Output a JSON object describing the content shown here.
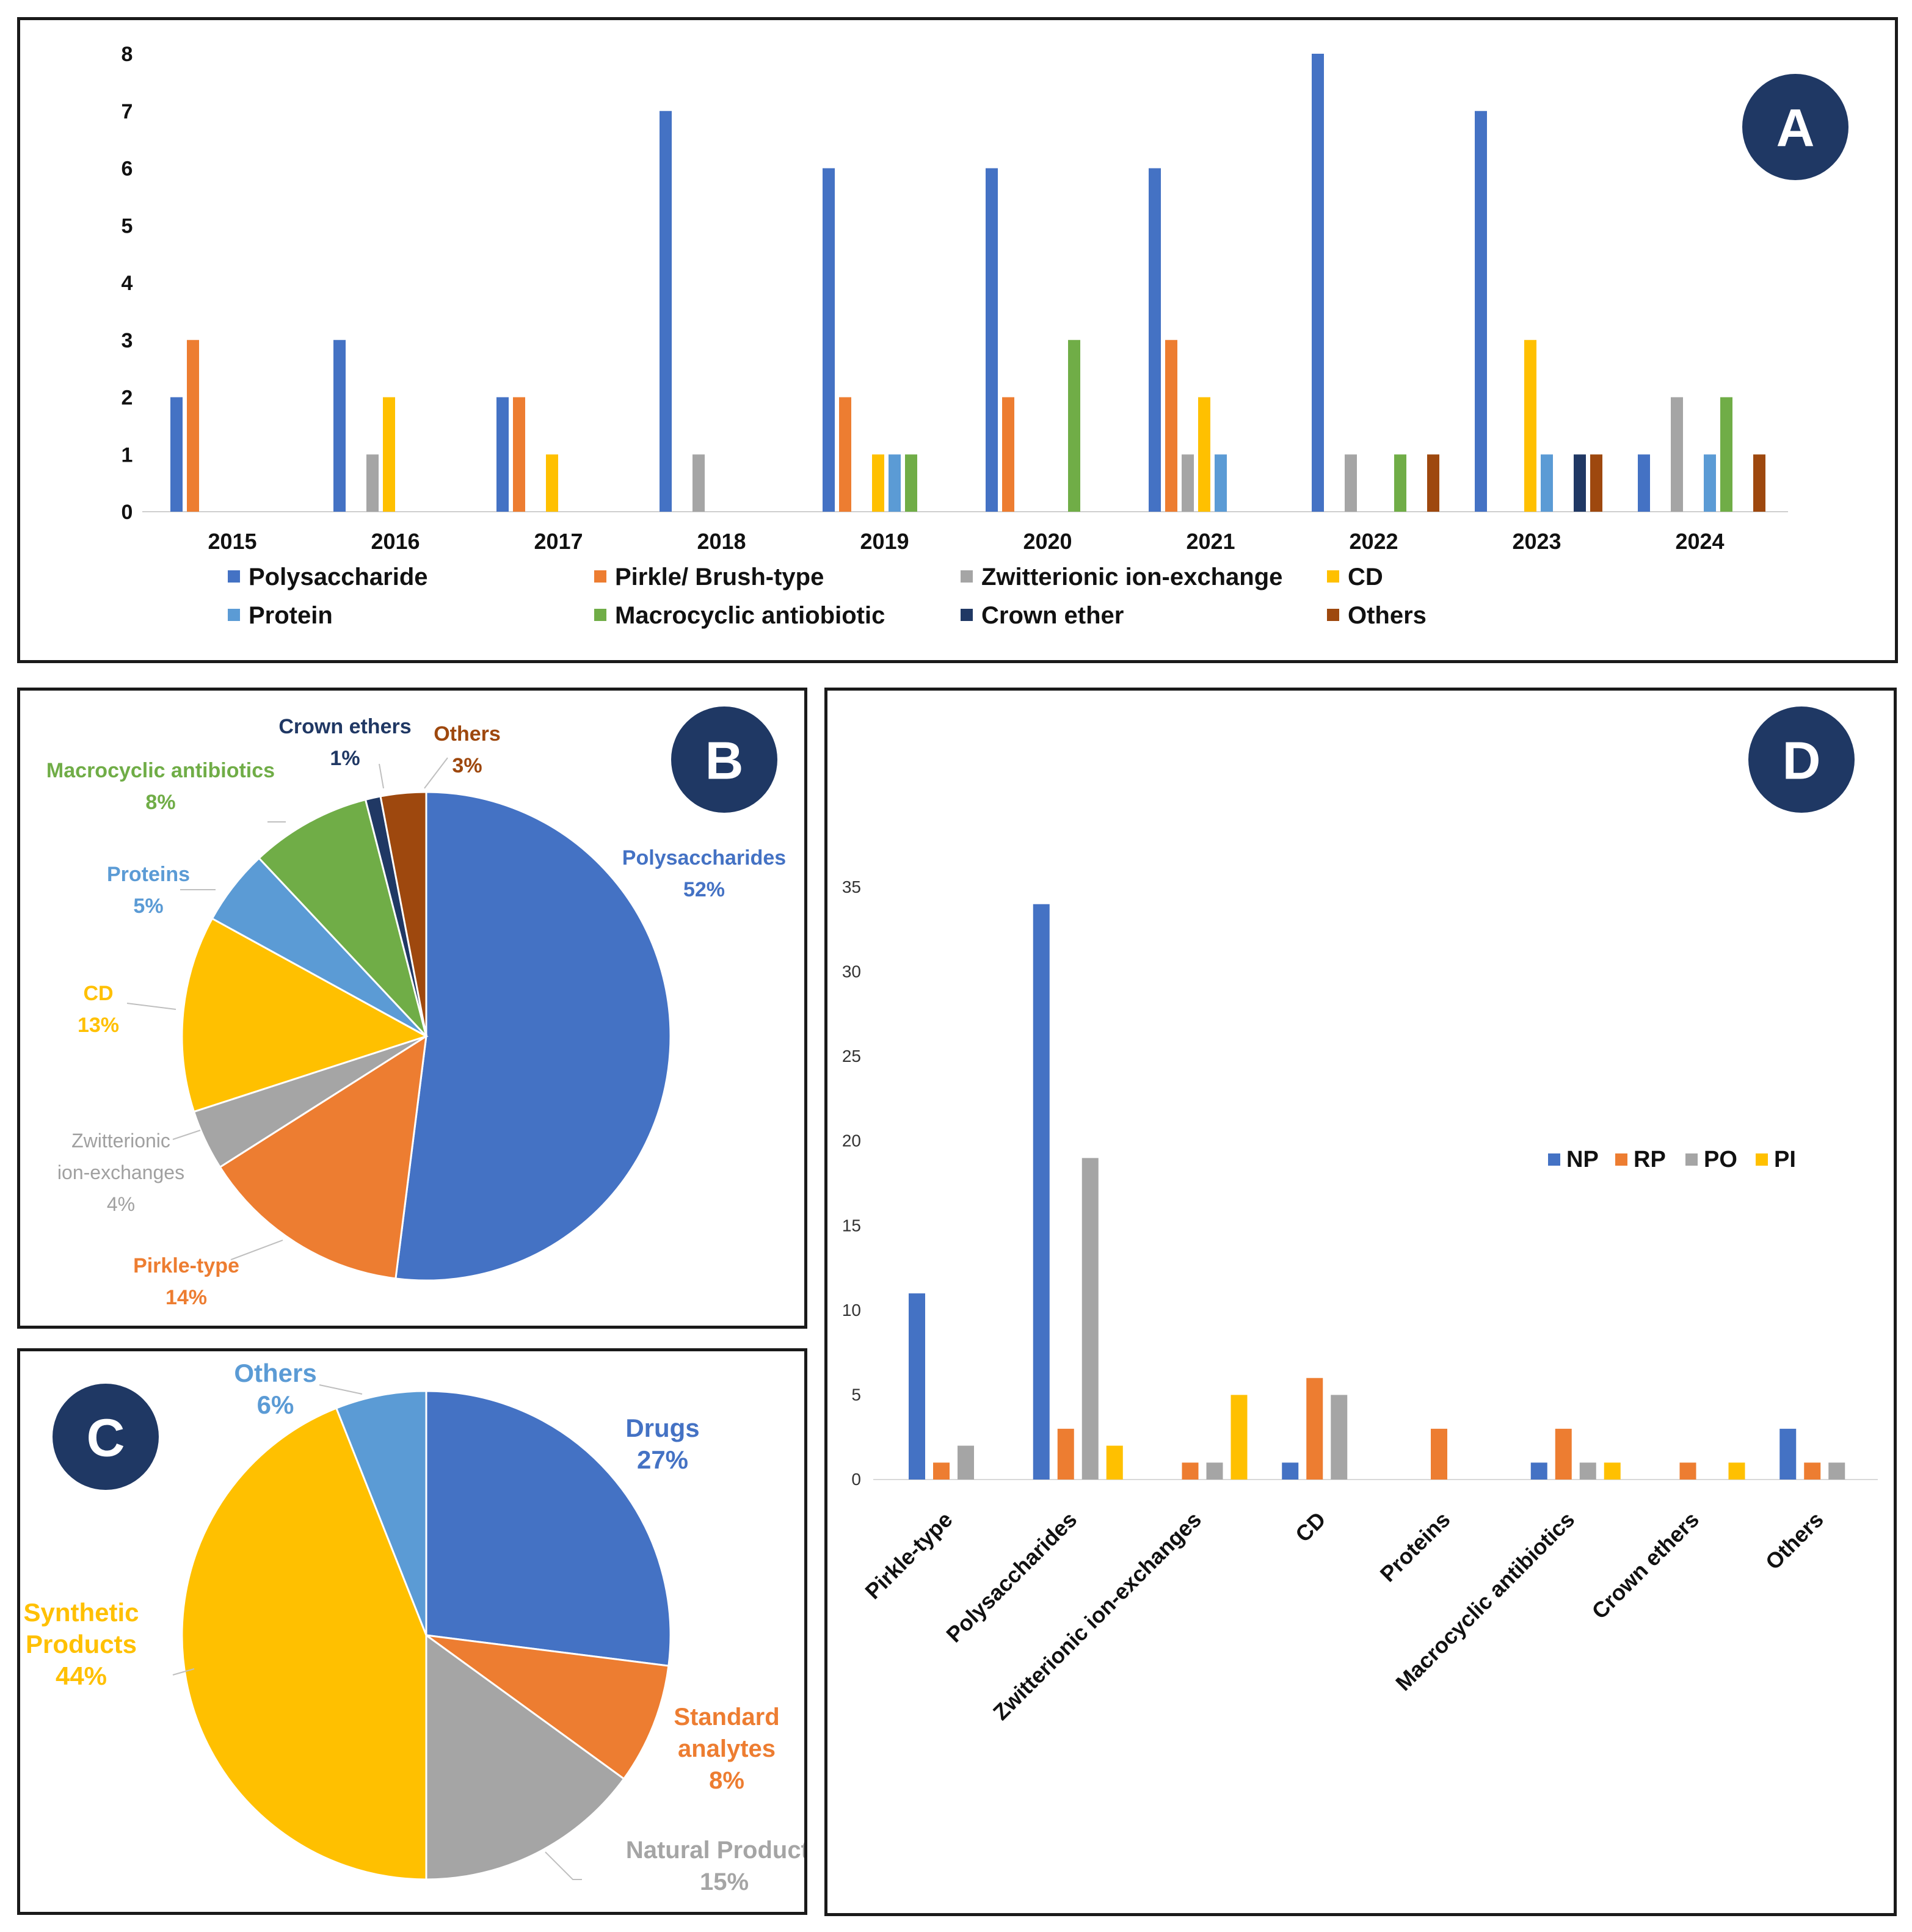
{
  "colors": {
    "polysaccharide": "#4472C4",
    "pirkle": "#ED7D31",
    "zwitterionic": "#A5A5A5",
    "cd": "#FFC000",
    "protein": "#5B9BD5",
    "macrocyclic": "#70AD47",
    "crown": "#203864",
    "others": "#9E480E",
    "badge": "#1F3864"
  },
  "chart_data": [
    {
      "id": "A",
      "type": "bar",
      "badge": "A",
      "categories": [
        "2015",
        "2016",
        "2017",
        "2018",
        "2019",
        "2020",
        "2021",
        "2022",
        "2023",
        "2024"
      ],
      "ylim": [
        0,
        8
      ],
      "yticks": [
        "0",
        "1",
        "2",
        "3",
        "4",
        "5",
        "6",
        "7",
        "8"
      ],
      "legend": [
        {
          "label": "Polysaccharide",
          "color": "#4472C4"
        },
        {
          "label": "Pirkle/ Brush-type",
          "color": "#ED7D31"
        },
        {
          "label": "Zwitterionic ion-exchange",
          "color": "#A5A5A5"
        },
        {
          "label": "CD",
          "color": "#FFC000"
        },
        {
          "label": "Protein",
          "color": "#5B9BD5"
        },
        {
          "label": "Macrocyclic antiobiotic",
          "color": "#70AD47"
        },
        {
          "label": "Crown ether",
          "color": "#203864"
        },
        {
          "label": "Others",
          "color": "#9E480E"
        }
      ],
      "series": [
        {
          "name": "Polysaccharide",
          "color": "#4472C4",
          "values": [
            2,
            3,
            2,
            7,
            6,
            6,
            6,
            8,
            7,
            1
          ]
        },
        {
          "name": "Pirkle/ Brush-type",
          "color": "#ED7D31",
          "values": [
            3,
            0,
            2,
            0,
            2,
            2,
            3,
            0,
            0,
            0
          ]
        },
        {
          "name": "Zwitterionic ion-exchange",
          "color": "#A5A5A5",
          "values": [
            0,
            1,
            0,
            1,
            0,
            0,
            1,
            1,
            0,
            2
          ]
        },
        {
          "name": "CD",
          "color": "#FFC000",
          "values": [
            0,
            2,
            1,
            0,
            1,
            0,
            2,
            0,
            3,
            0
          ]
        },
        {
          "name": "Protein",
          "color": "#5B9BD5",
          "values": [
            0,
            0,
            0,
            0,
            1,
            0,
            1,
            0,
            1,
            1
          ]
        },
        {
          "name": "Macrocyclic antiobiotic",
          "color": "#70AD47",
          "values": [
            0,
            0,
            0,
            0,
            1,
            3,
            0,
            1,
            0,
            2
          ]
        },
        {
          "name": "Crown ether",
          "color": "#203864",
          "values": [
            0,
            0,
            0,
            0,
            0,
            0,
            0,
            0,
            1,
            0
          ]
        },
        {
          "name": "Others",
          "color": "#9E480E",
          "values": [
            0,
            0,
            0,
            0,
            0,
            0,
            0,
            1,
            1,
            1
          ]
        }
      ]
    },
    {
      "id": "B",
      "type": "pie",
      "badge": "B",
      "slices": [
        {
          "label": "Polysaccharides",
          "pct": "52%",
          "value": 52,
          "color": "#4472C4"
        },
        {
          "label": "Pirkle-type",
          "pct": "14%",
          "value": 14,
          "color": "#ED7D31"
        },
        {
          "label": "Zwitterionic ion-exchanges",
          "label_lines": [
            "Zwitterionic",
            "ion-exchanges"
          ],
          "pct": "4%",
          "value": 4,
          "color": "#A5A5A5"
        },
        {
          "label": "CD",
          "pct": "13%",
          "value": 13,
          "color": "#FFC000"
        },
        {
          "label": "Proteins",
          "pct": "5%",
          "value": 5,
          "color": "#5B9BD5"
        },
        {
          "label": "Macrocyclic antibiotics",
          "pct": "8%",
          "value": 8,
          "color": "#70AD47"
        },
        {
          "label": "Crown ethers",
          "pct": "1%",
          "value": 1,
          "color": "#203864"
        },
        {
          "label": "Others",
          "pct": "3%",
          "value": 3,
          "color": "#9E480E"
        }
      ]
    },
    {
      "id": "C",
      "type": "pie",
      "badge": "C",
      "slices": [
        {
          "label": "Drugs",
          "pct": "27%",
          "value": 27,
          "color": "#4472C4"
        },
        {
          "label": "Standard analytes",
          "label_lines": [
            "Standard",
            "analytes"
          ],
          "pct": "8%",
          "value": 8,
          "color": "#ED7D31"
        },
        {
          "label": "Natural Products",
          "pct": "15%",
          "value": 15,
          "color": "#A5A5A5"
        },
        {
          "label": "Synthetic Products",
          "label_lines": [
            "Synthetic",
            "Products"
          ],
          "pct": "44%",
          "value": 44,
          "color": "#FFC000"
        },
        {
          "label": "Others",
          "pct": "6%",
          "value": 6,
          "color": "#5B9BD5"
        }
      ]
    },
    {
      "id": "D",
      "type": "bar",
      "badge": "D",
      "categories": [
        "Pirkle-type",
        "Polysaccharides",
        "Zwitterionic ion-exchanges",
        "CD",
        "Proteins",
        "Macrocyclic antibiotics",
        "Crown ethers",
        "Others"
      ],
      "ylim": [
        0,
        35
      ],
      "yticks": [
        "0",
        "5",
        "10",
        "15",
        "20",
        "25",
        "30",
        "35"
      ],
      "legend": [
        {
          "label": "NP",
          "color": "#4472C4"
        },
        {
          "label": "RP",
          "color": "#ED7D31"
        },
        {
          "label": "PO",
          "color": "#A5A5A5"
        },
        {
          "label": "PI",
          "color": "#FFC000"
        }
      ],
      "series": [
        {
          "name": "NP",
          "color": "#4472C4",
          "values": [
            11,
            34,
            0,
            1,
            0,
            1,
            0,
            3
          ]
        },
        {
          "name": "RP",
          "color": "#ED7D31",
          "values": [
            1,
            3,
            1,
            6,
            3,
            3,
            1,
            1
          ]
        },
        {
          "name": "PO",
          "color": "#A5A5A5",
          "values": [
            2,
            19,
            1,
            5,
            0,
            1,
            0,
            1
          ]
        },
        {
          "name": "PI",
          "color": "#FFC000",
          "values": [
            0,
            2,
            5,
            0,
            0,
            1,
            1,
            0
          ]
        }
      ]
    }
  ]
}
